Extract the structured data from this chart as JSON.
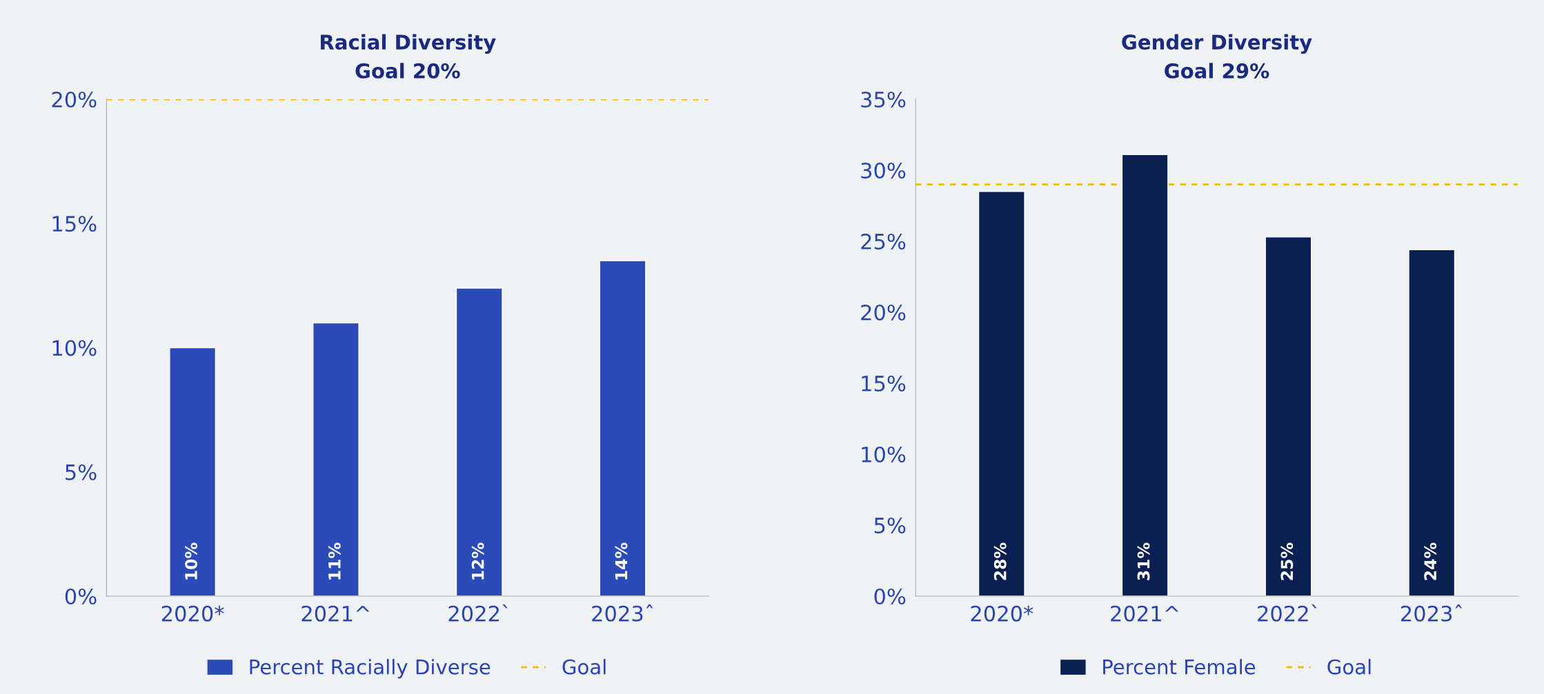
{
  "chart_data": [
    {
      "type": "bar",
      "title": "Racial Diversity",
      "subtitle": "Goal 20%",
      "categories": [
        "2020*",
        "2021^",
        "2022`",
        "2023ˆ"
      ],
      "series": [
        {
          "name": "Percent Racially Diverse",
          "color": "#2a4bb8",
          "values": [
            10,
            11,
            12.4,
            13.5
          ],
          "value_labels": [
            "10%",
            "11%",
            "12%",
            "14%"
          ]
        }
      ],
      "ylim": [
        0,
        20
      ],
      "yticks": [
        {
          "value": 0,
          "label": "0%"
        },
        {
          "value": 5,
          "label": "5%"
        },
        {
          "value": 10,
          "label": "10%"
        },
        {
          "value": 15,
          "label": "15%"
        },
        {
          "value": 20,
          "label": "20%"
        }
      ],
      "ref_lines": [
        {
          "axis": "y",
          "value": 20,
          "label": "Goal",
          "color": "#f5b800",
          "line_style": "dashed"
        }
      ],
      "grid": false,
      "legend": "bottom"
    },
    {
      "type": "bar",
      "title": "Gender Diversity",
      "subtitle": "Goal 29%",
      "categories": [
        "2020*",
        "2021^",
        "2022`",
        "2023ˆ"
      ],
      "series": [
        {
          "name": "Percent Female",
          "color": "#0a1f52",
          "values": [
            28.5,
            31.1,
            25.3,
            24.4
          ],
          "value_labels": [
            "28%",
            "31%",
            "25%",
            "24%"
          ]
        }
      ],
      "ylim": [
        0,
        35
      ],
      "yticks": [
        {
          "value": 0,
          "label": "0%"
        },
        {
          "value": 5,
          "label": "5%"
        },
        {
          "value": 10,
          "label": "10%"
        },
        {
          "value": 15,
          "label": "15%"
        },
        {
          "value": 20,
          "label": "20%"
        },
        {
          "value": 25,
          "label": "25%"
        },
        {
          "value": 30,
          "label": "30%"
        },
        {
          "value": 35,
          "label": "35%"
        }
      ],
      "ref_lines": [
        {
          "axis": "y",
          "value": 29,
          "label": "Goal",
          "color": "#f5b800",
          "line_style": "dashed"
        }
      ],
      "grid": false,
      "legend": "bottom"
    }
  ]
}
